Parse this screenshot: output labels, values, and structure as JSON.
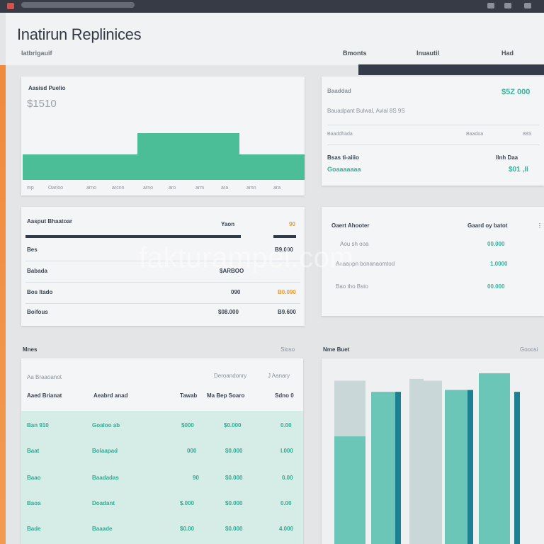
{
  "header": {
    "title": "Inatirun Replinices",
    "subtitle": "Iatbrigauif",
    "nav": [
      "Bmonts",
      "Inuautil",
      "Had"
    ]
  },
  "summary_card": {
    "title": "Aasisd Puelio",
    "value": "$1510",
    "x_labels": [
      "mp",
      "Oarioo",
      "arno",
      "arcnn",
      "arno",
      "aro",
      "arm",
      "ara",
      "amn",
      "ara"
    ],
    "fill_color": "#4cbe97"
  },
  "stats_card": {
    "title": "Baaddad",
    "value": "$5Z 000",
    "line1": "Bauadpant Bulwal, Avial 8S 9S",
    "row1_label": "Baaddhada",
    "row1_right_label": "Baadoa",
    "row1_right_value": "88S",
    "row2_label": "Bsas ti-aiiio",
    "row2_right_label": "Ilnh Daa",
    "row2_value": "Goaaaaaaa",
    "row2_right_value": "$01 ,II"
  },
  "list_card": {
    "title": "Aasput Bhaatoar",
    "header_mid": "Yaon",
    "header_right": "90",
    "rows": [
      {
        "label": "Bes",
        "value": "B9.000"
      },
      {
        "label": "Babada",
        "value": "$ARBOO"
      },
      {
        "label": "Bos Itado",
        "value": "090",
        "highlight": "B0.090"
      },
      {
        "label": "Boifous",
        "value": "$08.000",
        "right": "B9.600"
      }
    ]
  },
  "right_list_card": {
    "title": "Oaert Ahooter",
    "header_right": "Gaard oy batot",
    "rows": [
      {
        "label": "Aou sh ooa",
        "value": "00.000"
      },
      {
        "label": "Aaaappn bonanaomtod",
        "value": "1.0000"
      },
      {
        "label": "Bao tho Bsto",
        "value": "00.000"
      }
    ]
  },
  "section_left": {
    "title": "Mnes",
    "right": "Sioso"
  },
  "section_right": {
    "title": "Nme Buet",
    "right": "Gooosi"
  },
  "table": {
    "top_left": "Aa Braaoanot",
    "top_mid": "Deroandonry",
    "top_right": "J Aanary",
    "columns": [
      "Aaed Brianat",
      "Aeabrd anad",
      "Tawab",
      "Ma Bep Soaro",
      "Sdno 0"
    ],
    "rows": [
      [
        "Ban 910",
        "Goaloo ab",
        "$000",
        "$0.000",
        "0.00"
      ],
      [
        "Baat",
        "Bolaapad",
        "000",
        "$0.000",
        "I.000"
      ],
      [
        "Baao",
        "Baadadas",
        "90",
        "$0.000",
        "0.00"
      ],
      [
        "Baoa",
        "Doadant",
        "$.000",
        "$0.000",
        "0.00"
      ],
      [
        "Bade",
        "Baaade",
        "$0.00",
        "$0.000",
        "4.000"
      ]
    ]
  },
  "bars_chart": {
    "series_colors": {
      "light": "#6cc6b8",
      "pale": "#c9d7d8",
      "dark": "#1c7f92"
    },
    "levels": [
      0.58,
      0.48,
      0.38,
      0.38,
      0.58,
      0.42,
      0.38,
      0.33,
      0.58
    ]
  },
  "watermark": "fakturampel.com"
}
